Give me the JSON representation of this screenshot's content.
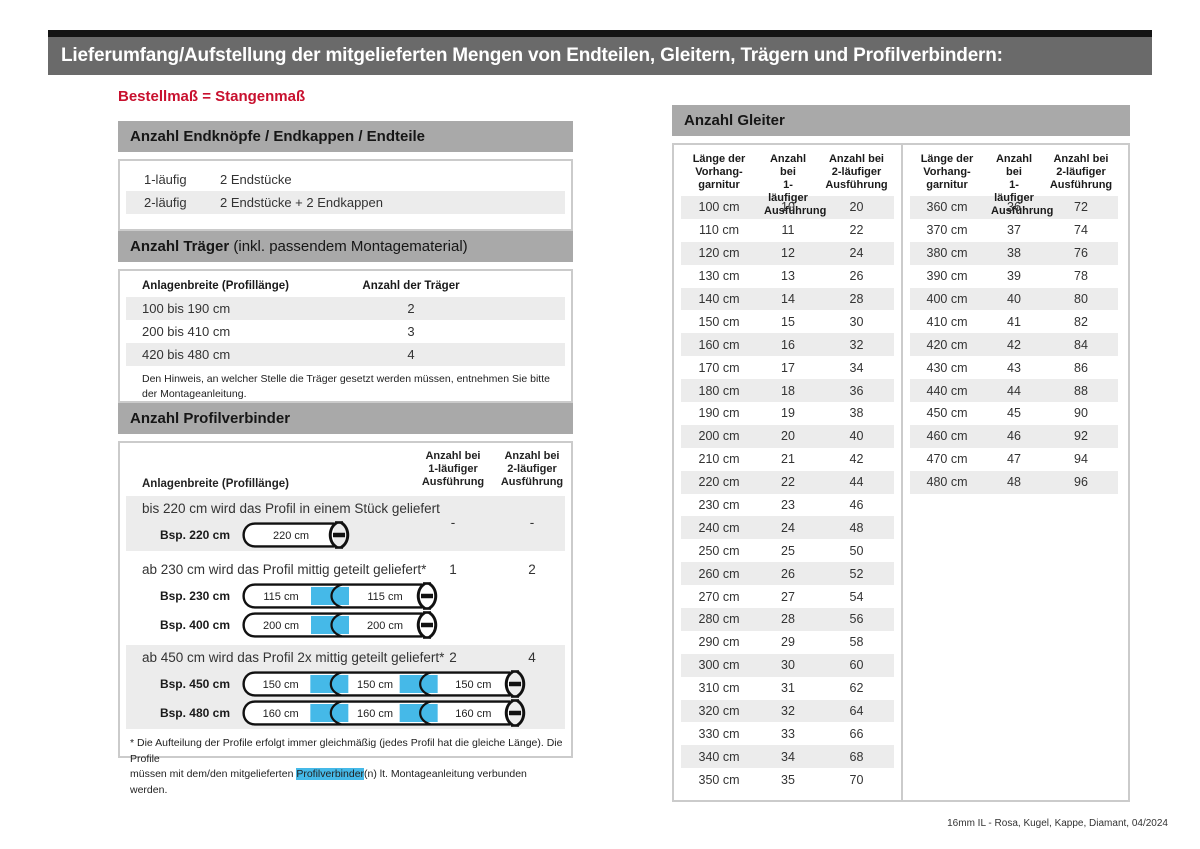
{
  "page_title": "Lieferumfang/Aufstellung der mitgelieferten Mengen von Endteilen, Gleitern, Trägern und Profilverbindern:",
  "order_note": "Bestellmaß = Stangenmaß",
  "colors": {
    "accent_red": "#c8102e",
    "connector_blue": "#45b9e8",
    "title_bar_gray": "#6a6a6a",
    "section_bar_gray": "#a9a9a9",
    "row_stripe_gray": "#ececec"
  },
  "endteile": {
    "title": "Anzahl Endknöpfe / Endkappen / Endteile",
    "rows": [
      {
        "label": "1-läufig",
        "value": "2 Endstücke"
      },
      {
        "label": "2-läufig",
        "value": "2 Endstücke + 2 Endkappen"
      }
    ]
  },
  "traeger": {
    "title_bold": "Anzahl Träger",
    "title_rest": " (inkl. passendem Montagematerial)",
    "col_width": "Anlagenbreite (Profillänge)",
    "col_count": "Anzahl der Träger",
    "rows": [
      {
        "range": "100 bis 190 cm",
        "count": "2"
      },
      {
        "range": "200 bis 410 cm",
        "count": "3"
      },
      {
        "range": "420 bis 480 cm",
        "count": "4"
      }
    ],
    "note": "Den Hinweis, an welcher Stelle die Träger gesetzt werden müssen, entnehmen Sie bitte\nder Montageanleitung."
  },
  "profilverbinder": {
    "title": "Anzahl Profilverbinder",
    "col_width": "Anlagenbreite (Profillänge)",
    "col_1laeufig": "Anzahl bei\n1-läufiger\nAusführung",
    "col_2laeufig": "Anzahl bei\n2-läufiger\nAusführung",
    "blocks": [
      {
        "text": "bis 220 cm wird das Profil in einem Stück geliefert",
        "v1": "-",
        "v2": "-",
        "examples": [
          {
            "label": "Bsp. 220 cm",
            "segments": [
              "220 cm"
            ]
          }
        ]
      },
      {
        "text": "ab 230 cm wird das Profil mittig geteilt geliefert*",
        "v1": "1",
        "v2": "2",
        "examples": [
          {
            "label": "Bsp. 230 cm",
            "segments": [
              "115 cm",
              "115 cm"
            ]
          },
          {
            "label": "Bsp. 400 cm",
            "segments": [
              "200 cm",
              "200 cm"
            ]
          }
        ]
      },
      {
        "text": "ab 450 cm wird das Profil 2x mittig geteilt geliefert*",
        "v1": "2",
        "v2": "4",
        "examples": [
          {
            "label": "Bsp. 450 cm",
            "segments": [
              "150 cm",
              "150 cm",
              "150 cm"
            ]
          },
          {
            "label": "Bsp. 480 cm",
            "segments": [
              "160 cm",
              "160 cm",
              "160 cm"
            ]
          }
        ]
      }
    ],
    "footnote_pre": "* Die Aufteilung der Profile erfolgt immer gleichmäßig (jedes Profil hat die gleiche Länge). Die Profile\nmüssen mit dem/den mitgelieferten ",
    "footnote_highlight": "Profilverbinder",
    "footnote_post": "(n) lt. Montageanleitung verbunden werden."
  },
  "gleiter": {
    "title": "Anzahl Gleiter",
    "col_length": "Länge der\nVorhang-\ngarnitur",
    "col_1laeufig": "Anzahl bei\n1-läufiger\nAusführung",
    "col_2laeufig": "Anzahl bei\n2-läufiger\nAusführung",
    "table1": [
      [
        "100 cm",
        "10",
        "20"
      ],
      [
        "110 cm",
        "11",
        "22"
      ],
      [
        "120 cm",
        "12",
        "24"
      ],
      [
        "130 cm",
        "13",
        "26"
      ],
      [
        "140 cm",
        "14",
        "28"
      ],
      [
        "150 cm",
        "15",
        "30"
      ],
      [
        "160 cm",
        "16",
        "32"
      ],
      [
        "170 cm",
        "17",
        "34"
      ],
      [
        "180 cm",
        "18",
        "36"
      ],
      [
        "190 cm",
        "19",
        "38"
      ],
      [
        "200 cm",
        "20",
        "40"
      ],
      [
        "210 cm",
        "21",
        "42"
      ],
      [
        "220 cm",
        "22",
        "44"
      ],
      [
        "230 cm",
        "23",
        "46"
      ],
      [
        "240 cm",
        "24",
        "48"
      ],
      [
        "250 cm",
        "25",
        "50"
      ],
      [
        "260 cm",
        "26",
        "52"
      ],
      [
        "270 cm",
        "27",
        "54"
      ],
      [
        "280 cm",
        "28",
        "56"
      ],
      [
        "290 cm",
        "29",
        "58"
      ],
      [
        "300 cm",
        "30",
        "60"
      ],
      [
        "310 cm",
        "31",
        "62"
      ],
      [
        "320 cm",
        "32",
        "64"
      ],
      [
        "330 cm",
        "33",
        "66"
      ],
      [
        "340 cm",
        "34",
        "68"
      ],
      [
        "350 cm",
        "35",
        "70"
      ]
    ],
    "table2": [
      [
        "360 cm",
        "36",
        "72"
      ],
      [
        "370 cm",
        "37",
        "74"
      ],
      [
        "380 cm",
        "38",
        "76"
      ],
      [
        "390 cm",
        "39",
        "78"
      ],
      [
        "400 cm",
        "40",
        "80"
      ],
      [
        "410 cm",
        "41",
        "82"
      ],
      [
        "420 cm",
        "42",
        "84"
      ],
      [
        "430 cm",
        "43",
        "86"
      ],
      [
        "440 cm",
        "44",
        "88"
      ],
      [
        "450 cm",
        "45",
        "90"
      ],
      [
        "460 cm",
        "46",
        "92"
      ],
      [
        "470 cm",
        "47",
        "94"
      ],
      [
        "480 cm",
        "48",
        "96"
      ]
    ]
  },
  "footer": "16mm IL - Rosa, Kugel, Kappe, Diamant, 04/2024"
}
